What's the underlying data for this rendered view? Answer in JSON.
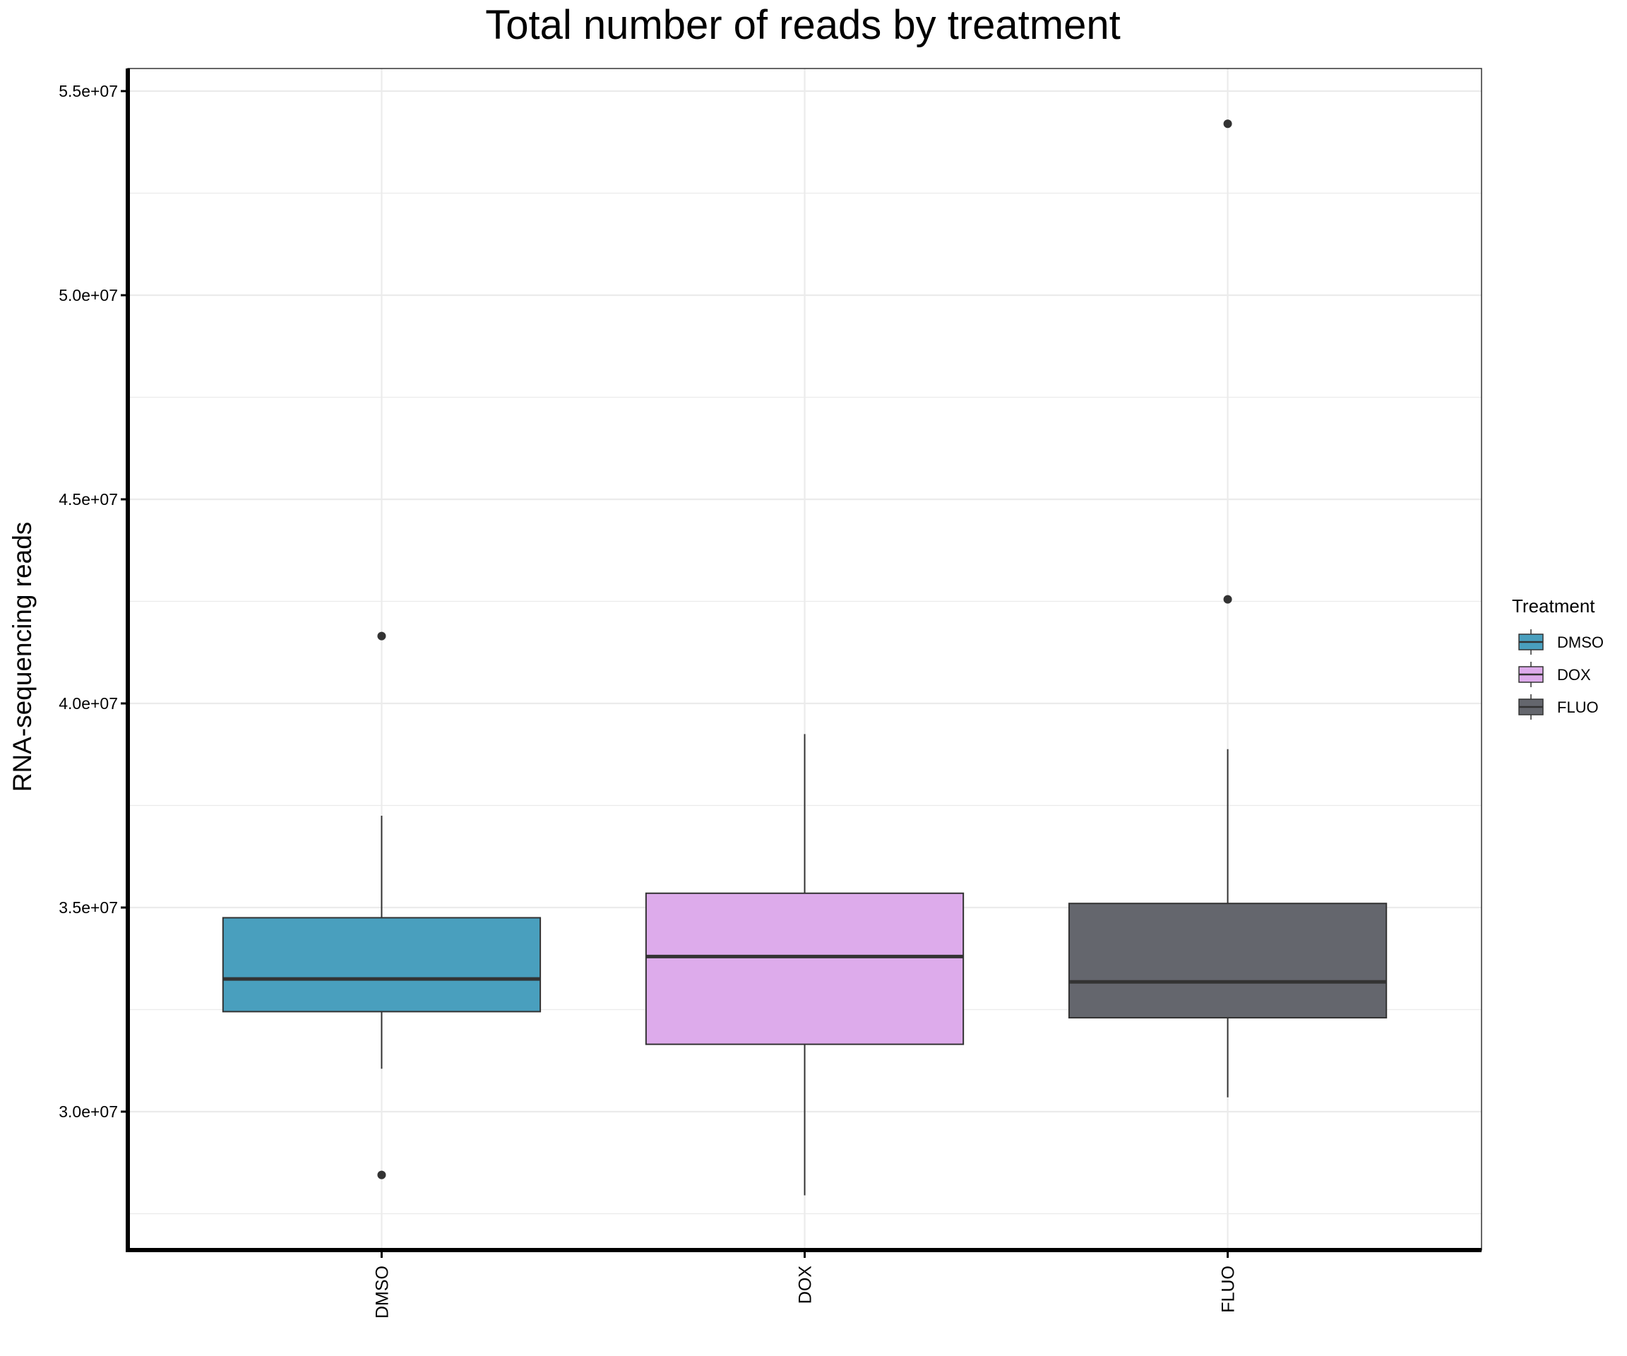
{
  "colors": {
    "DMSO": "#499FBE",
    "DOX": "#DDABEB",
    "FLUO": "#64666D",
    "grid": "#EBEBEB",
    "outline": "#333333"
  },
  "chart_data": {
    "type": "box",
    "title": "Total number of reads by treatment",
    "xlabel": "",
    "ylabel": "RNA-sequencing reads",
    "ylim": [
      27000000,
      55500000
    ],
    "y_ticks": [
      30000000,
      35000000,
      40000000,
      45000000,
      50000000,
      55000000
    ],
    "y_tick_labels": [
      "3.0e+07",
      "3.5e+07",
      "4.0e+07",
      "4.5e+07",
      "5.0e+07",
      "5.5e+07"
    ],
    "grid": true,
    "categories": [
      "DMSO",
      "DOX",
      "FLUO"
    ],
    "boxes": [
      {
        "category": "DMSO",
        "whisker_low": 31050000,
        "q1": 32450000,
        "median": 33250000,
        "q3": 34750000,
        "whisker_high": 37250000,
        "outliers": [
          41650000,
          28450000
        ]
      },
      {
        "category": "DOX",
        "whisker_low": 27950000,
        "q1": 31650000,
        "median": 33800000,
        "q3": 35350000,
        "whisker_high": 39250000,
        "outliers": []
      },
      {
        "category": "FLUO",
        "whisker_low": 30350000,
        "q1": 32300000,
        "median": 33180000,
        "q3": 35100000,
        "whisker_high": 38880000,
        "outliers": [
          54200000,
          42550000
        ]
      }
    ],
    "legend": {
      "title": "Treatment",
      "position": "right",
      "entries": [
        "DMSO",
        "DOX",
        "FLUO"
      ]
    }
  }
}
